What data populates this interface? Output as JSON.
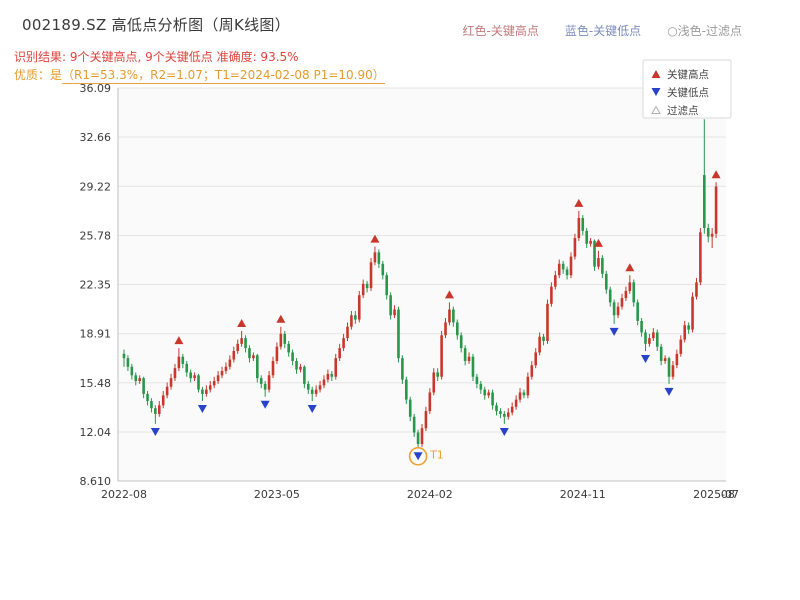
{
  "header": {
    "title": "002189.SZ 高低点分析图（周K线图）",
    "top_legend": [
      {
        "label": "红色-关键高点",
        "color": "#c27a7a"
      },
      {
        "label": "蓝色-关键低点",
        "color": "#7d8cc2"
      },
      {
        "label": "○浅色-过滤点",
        "color": "#9b9b9b"
      }
    ],
    "result_line": "识别结果: 9个关键高点, 9个关键低点  准确度: 93.5%",
    "quality_prefix": "优质：是",
    "quality_detail": "（R1=53.3%，R2=1.07；T1=2024-02-08 P1=10.90）"
  },
  "chart_data": {
    "type": "candlestick",
    "symbol": "002189.SZ",
    "frequency": "weekly",
    "y_min": 8.61,
    "y_max": 36.09,
    "y_ticks": [
      "8.610",
      "12.04",
      "15.48",
      "18.91",
      "22.35",
      "25.78",
      "29.22",
      "32.66",
      "36.09"
    ],
    "y_tick_values": [
      8.61,
      12.04,
      15.48,
      18.91,
      22.35,
      25.78,
      29.22,
      32.66,
      36.09
    ],
    "x_domain_weeks": 153,
    "x_ticks": [
      {
        "week": 0,
        "label": "2022-08"
      },
      {
        "week": 39,
        "label": "2023-05"
      },
      {
        "week": 78,
        "label": "2024-02"
      },
      {
        "week": 117,
        "label": "2024-11"
      },
      {
        "week": 151,
        "label": "2025-07"
      },
      {
        "week": 154,
        "label": "08"
      }
    ],
    "candles": [
      [
        17.5,
        17.8,
        16.6,
        17.2
      ],
      [
        17.2,
        17.4,
        16.3,
        16.6
      ],
      [
        16.6,
        16.8,
        15.7,
        16.0
      ],
      [
        16.0,
        16.2,
        15.3,
        15.6
      ],
      [
        15.6,
        16.0,
        15.4,
        15.8
      ],
      [
        15.8,
        15.9,
        14.4,
        14.7
      ],
      [
        14.7,
        14.9,
        13.9,
        14.2
      ],
      [
        14.2,
        14.4,
        13.4,
        13.7
      ],
      [
        13.7,
        13.9,
        12.6,
        13.3
      ],
      [
        13.3,
        14.2,
        13.1,
        13.9
      ],
      [
        13.9,
        14.9,
        13.7,
        14.6
      ],
      [
        14.6,
        15.5,
        14.4,
        15.2
      ],
      [
        15.2,
        16.1,
        15.0,
        15.8
      ],
      [
        15.8,
        16.8,
        15.6,
        16.5
      ],
      [
        16.5,
        17.9,
        16.3,
        17.3
      ],
      [
        17.3,
        17.5,
        16.5,
        16.8
      ],
      [
        16.8,
        17.0,
        15.9,
        16.2
      ],
      [
        16.2,
        16.4,
        15.5,
        15.8
      ],
      [
        15.8,
        16.2,
        15.6,
        16.0
      ],
      [
        16.0,
        16.1,
        14.8,
        15.0
      ],
      [
        15.0,
        15.2,
        14.2,
        14.7
      ],
      [
        14.7,
        15.3,
        14.5,
        15.0
      ],
      [
        15.0,
        15.6,
        14.8,
        15.3
      ],
      [
        15.3,
        15.9,
        15.1,
        15.6
      ],
      [
        15.6,
        16.3,
        15.4,
        16.0
      ],
      [
        16.0,
        16.6,
        15.8,
        16.3
      ],
      [
        16.3,
        16.9,
        16.1,
        16.6
      ],
      [
        16.6,
        17.4,
        16.4,
        17.1
      ],
      [
        17.1,
        18.0,
        16.9,
        17.7
      ],
      [
        17.7,
        18.5,
        17.5,
        18.2
      ],
      [
        18.2,
        19.1,
        18.0,
        18.6
      ],
      [
        18.6,
        18.8,
        17.6,
        17.9
      ],
      [
        17.9,
        18.1,
        16.9,
        17.2
      ],
      [
        17.2,
        17.6,
        17.0,
        17.4
      ],
      [
        17.4,
        17.5,
        15.5,
        15.8
      ],
      [
        15.8,
        16.0,
        15.1,
        15.4
      ],
      [
        15.4,
        15.6,
        14.5,
        15.0
      ],
      [
        15.0,
        16.3,
        14.8,
        16.0
      ],
      [
        16.0,
        17.3,
        15.8,
        17.0
      ],
      [
        17.0,
        18.3,
        16.8,
        18.0
      ],
      [
        18.0,
        19.4,
        17.8,
        18.9
      ],
      [
        18.9,
        19.1,
        17.9,
        18.2
      ],
      [
        18.2,
        18.4,
        17.3,
        17.6
      ],
      [
        17.6,
        17.8,
        16.7,
        17.0
      ],
      [
        17.0,
        17.2,
        16.1,
        16.4
      ],
      [
        16.4,
        16.8,
        16.2,
        16.6
      ],
      [
        16.6,
        16.7,
        15.1,
        15.4
      ],
      [
        15.4,
        15.6,
        14.7,
        15.0
      ],
      [
        15.0,
        15.2,
        14.2,
        14.7
      ],
      [
        14.7,
        15.3,
        14.5,
        15.0
      ],
      [
        15.0,
        15.6,
        14.8,
        15.3
      ],
      [
        15.3,
        16.0,
        15.1,
        15.7
      ],
      [
        15.7,
        16.4,
        15.5,
        16.1
      ],
      [
        16.1,
        16.3,
        15.6,
        15.9
      ],
      [
        15.9,
        17.5,
        15.7,
        17.2
      ],
      [
        17.2,
        18.2,
        17.0,
        17.9
      ],
      [
        17.9,
        18.9,
        17.7,
        18.6
      ],
      [
        18.6,
        19.7,
        18.4,
        19.4
      ],
      [
        19.4,
        20.5,
        19.2,
        20.2
      ],
      [
        20.2,
        20.5,
        19.6,
        19.9
      ],
      [
        19.9,
        21.9,
        19.7,
        21.6
      ],
      [
        21.6,
        22.7,
        21.4,
        22.4
      ],
      [
        22.4,
        22.6,
        21.8,
        22.1
      ],
      [
        22.1,
        24.2,
        21.9,
        23.9
      ],
      [
        23.9,
        25.0,
        23.7,
        24.6
      ],
      [
        24.6,
        24.8,
        23.5,
        23.8
      ],
      [
        23.8,
        24.0,
        22.7,
        23.0
      ],
      [
        23.0,
        23.2,
        21.3,
        21.6
      ],
      [
        21.6,
        21.8,
        19.9,
        20.2
      ],
      [
        20.2,
        20.9,
        20.0,
        20.6
      ],
      [
        20.6,
        20.8,
        16.9,
        17.2
      ],
      [
        17.2,
        17.4,
        15.4,
        15.7
      ],
      [
        15.7,
        15.9,
        14.0,
        14.3
      ],
      [
        14.3,
        14.5,
        12.8,
        13.1
      ],
      [
        13.1,
        13.3,
        11.7,
        12.0
      ],
      [
        12.0,
        12.2,
        10.9,
        11.2
      ],
      [
        11.2,
        12.6,
        11.0,
        12.3
      ],
      [
        12.3,
        13.8,
        12.1,
        13.5
      ],
      [
        13.5,
        15.1,
        13.3,
        14.8
      ],
      [
        14.8,
        16.5,
        14.6,
        16.2
      ],
      [
        16.2,
        16.5,
        15.6,
        15.9
      ],
      [
        15.9,
        19.1,
        15.7,
        18.8
      ],
      [
        18.8,
        20.0,
        18.6,
        19.7
      ],
      [
        19.7,
        21.1,
        19.5,
        20.6
      ],
      [
        20.6,
        20.8,
        19.4,
        19.7
      ],
      [
        19.7,
        19.9,
        18.5,
        18.8
      ],
      [
        18.8,
        19.0,
        17.6,
        17.9
      ],
      [
        17.9,
        18.1,
        16.7,
        17.0
      ],
      [
        17.0,
        17.6,
        16.8,
        17.3
      ],
      [
        17.3,
        17.5,
        15.6,
        15.9
      ],
      [
        15.9,
        16.1,
        15.1,
        15.4
      ],
      [
        15.4,
        15.6,
        14.7,
        15.0
      ],
      [
        15.0,
        15.2,
        14.3,
        14.6
      ],
      [
        14.6,
        15.0,
        14.4,
        14.8
      ],
      [
        14.8,
        15.0,
        13.6,
        13.9
      ],
      [
        13.9,
        14.1,
        13.2,
        13.5
      ],
      [
        13.5,
        13.7,
        13.0,
        13.3
      ],
      [
        13.3,
        13.5,
        12.6,
        13.1
      ],
      [
        13.1,
        13.7,
        12.9,
        13.4
      ],
      [
        13.4,
        14.1,
        13.2,
        13.8
      ],
      [
        13.8,
        14.6,
        13.6,
        14.3
      ],
      [
        14.3,
        15.1,
        14.1,
        14.8
      ],
      [
        14.8,
        15.0,
        14.4,
        14.6
      ],
      [
        14.6,
        16.2,
        14.4,
        15.9
      ],
      [
        15.9,
        17.0,
        15.7,
        16.7
      ],
      [
        16.7,
        17.9,
        16.5,
        17.6
      ],
      [
        17.6,
        19.0,
        17.4,
        18.7
      ],
      [
        18.7,
        18.9,
        18.1,
        18.4
      ],
      [
        18.4,
        21.3,
        18.2,
        21.0
      ],
      [
        21.0,
        22.5,
        20.8,
        22.2
      ],
      [
        22.2,
        23.3,
        22.0,
        23.0
      ],
      [
        23.0,
        24.1,
        22.8,
        23.8
      ],
      [
        23.8,
        24.0,
        23.1,
        23.4
      ],
      [
        23.4,
        23.6,
        22.7,
        23.0
      ],
      [
        23.0,
        24.6,
        22.8,
        24.3
      ],
      [
        24.3,
        25.9,
        24.1,
        25.6
      ],
      [
        25.6,
        27.5,
        25.4,
        27.0
      ],
      [
        27.0,
        27.2,
        25.8,
        26.1
      ],
      [
        26.1,
        26.3,
        24.9,
        25.2
      ],
      [
        25.2,
        25.6,
        25.0,
        25.4
      ],
      [
        25.4,
        25.5,
        23.3,
        23.6
      ],
      [
        23.6,
        24.7,
        23.4,
        24.2
      ],
      [
        24.2,
        24.4,
        22.8,
        23.1
      ],
      [
        23.1,
        23.3,
        21.7,
        22.0
      ],
      [
        22.0,
        22.2,
        20.8,
        21.1
      ],
      [
        21.1,
        21.3,
        19.6,
        20.2
      ],
      [
        20.2,
        21.1,
        20.0,
        20.8
      ],
      [
        20.8,
        21.7,
        20.6,
        21.4
      ],
      [
        21.4,
        22.2,
        21.2,
        21.9
      ],
      [
        21.9,
        23.0,
        21.7,
        22.5
      ],
      [
        22.5,
        22.7,
        20.8,
        21.1
      ],
      [
        21.1,
        21.3,
        19.5,
        19.8
      ],
      [
        19.8,
        20.0,
        18.7,
        19.0
      ],
      [
        19.0,
        19.2,
        17.7,
        18.2
      ],
      [
        18.2,
        18.9,
        18.0,
        18.6
      ],
      [
        18.6,
        19.3,
        18.4,
        19.0
      ],
      [
        19.0,
        19.2,
        17.7,
        18.0
      ],
      [
        18.0,
        18.2,
        16.7,
        17.0
      ],
      [
        17.0,
        17.4,
        16.8,
        17.2
      ],
      [
        17.2,
        17.3,
        15.4,
        15.9
      ],
      [
        15.9,
        17.0,
        15.7,
        16.7
      ],
      [
        16.7,
        17.8,
        16.5,
        17.5
      ],
      [
        17.5,
        18.8,
        17.3,
        18.5
      ],
      [
        18.5,
        19.8,
        18.3,
        19.5
      ],
      [
        19.5,
        19.7,
        18.9,
        19.2
      ],
      [
        19.2,
        21.8,
        19.0,
        21.5
      ],
      [
        21.5,
        22.8,
        21.3,
        22.5
      ],
      [
        22.5,
        26.3,
        22.3,
        26.0
      ],
      [
        30.0,
        33.9,
        25.9,
        26.3
      ],
      [
        26.3,
        26.6,
        25.3,
        25.7
      ],
      [
        25.7,
        26.3,
        24.9,
        25.9
      ],
      [
        25.9,
        29.5,
        25.6,
        29.2
      ]
    ],
    "markers": {
      "highs": [
        {
          "week": 14,
          "price": 17.9
        },
        {
          "week": 30,
          "price": 19.1
        },
        {
          "week": 40,
          "price": 19.4
        },
        {
          "week": 64,
          "price": 25.0
        },
        {
          "week": 83,
          "price": 21.1
        },
        {
          "week": 116,
          "price": 27.5
        },
        {
          "week": 121,
          "price": 24.7
        },
        {
          "week": 129,
          "price": 23.0
        },
        {
          "week": 151,
          "price": 29.5
        }
      ],
      "lows": [
        {
          "week": 8,
          "price": 12.6
        },
        {
          "week": 20,
          "price": 14.2
        },
        {
          "week": 36,
          "price": 14.5
        },
        {
          "week": 48,
          "price": 14.2
        },
        {
          "week": 75,
          "price": 10.9
        },
        {
          "week": 97,
          "price": 12.6
        },
        {
          "week": 125,
          "price": 19.6
        },
        {
          "week": 133,
          "price": 17.7
        },
        {
          "week": 139,
          "price": 15.4
        }
      ],
      "t1": {
        "week": 75,
        "price": 10.9,
        "label": "T1"
      }
    },
    "legend": {
      "items": [
        {
          "glyph": "triangle-up",
          "label": "关键高点"
        },
        {
          "glyph": "triangle-down",
          "label": "关键低点"
        },
        {
          "glyph": "triangle-outline",
          "label": "过滤点"
        }
      ]
    },
    "colors": {
      "up": "#c9372c",
      "down": "#28964b",
      "key_high": "#c9372c",
      "key_low": "#2743c9",
      "t1": "#f0a030",
      "grid": "#e4e4e4",
      "plot_bg": "#fafafa",
      "axis_text": "#3a3a3a",
      "spine": "#c0c0c0"
    }
  }
}
